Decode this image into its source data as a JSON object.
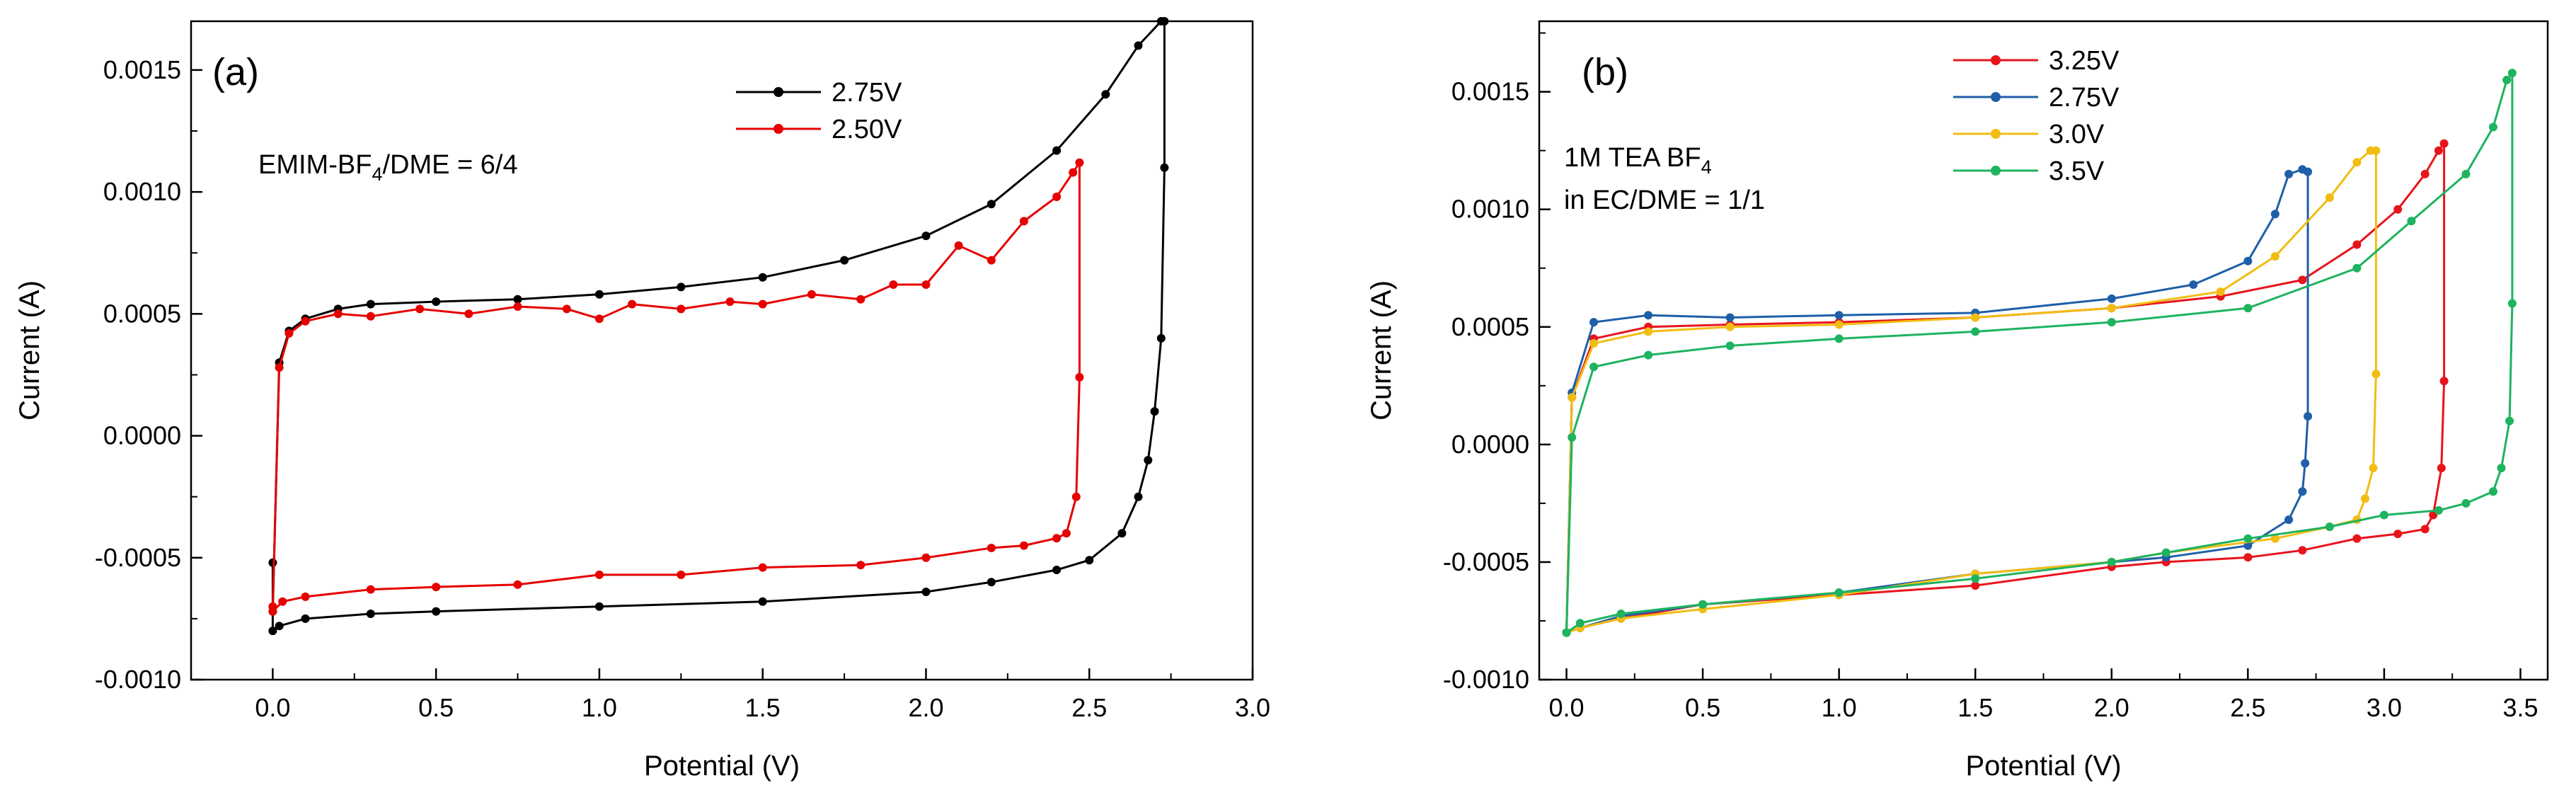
{
  "chart_data": [
    {
      "type": "line",
      "panel": "(a)",
      "xlabel": "Potential (V)",
      "ylabel": "Current (A)",
      "xlim": [
        -0.25,
        3.0
      ],
      "ylim": [
        -0.001,
        0.0017
      ],
      "xticks": [
        "0.0",
        "0.5",
        "1.0",
        "1.5",
        "2.0",
        "2.5",
        "3.0"
      ],
      "yticks": [
        "-0.0010",
        "-0.0005",
        "0.0000",
        "0.0005",
        "0.0010",
        "0.0015"
      ],
      "annotation": {
        "main": "EMIM-BF",
        "sub": "4",
        "rest": "/DME = 6/4"
      },
      "legend_position": "top-center",
      "series": [
        {
          "name": "2.75V",
          "color": "#000000",
          "x": [
            0.0,
            0.02,
            0.05,
            0.1,
            0.2,
            0.3,
            0.5,
            0.75,
            1.0,
            1.25,
            1.5,
            1.75,
            2.0,
            2.2,
            2.4,
            2.55,
            2.65,
            2.72,
            2.73,
            2.73,
            2.72,
            2.7,
            2.68,
            2.65,
            2.6,
            2.5,
            2.4,
            2.2,
            2.0,
            1.5,
            1.0,
            0.5,
            0.3,
            0.1,
            0.02,
            0.0,
            0.0
          ],
          "y": [
            -0.00072,
            0.0003,
            0.00043,
            0.00048,
            0.00052,
            0.00054,
            0.00055,
            0.00056,
            0.00058,
            0.00061,
            0.00065,
            0.00072,
            0.00082,
            0.00095,
            0.00117,
            0.0014,
            0.0016,
            0.0017,
            0.0017,
            0.0011,
            0.0004,
            0.0001,
            -0.0001,
            -0.00025,
            -0.0004,
            -0.00051,
            -0.00055,
            -0.0006,
            -0.00064,
            -0.00068,
            -0.0007,
            -0.00072,
            -0.00073,
            -0.00075,
            -0.00078,
            -0.0008,
            -0.00052
          ]
        },
        {
          "name": "2.50V",
          "color": "#e60000",
          "x": [
            0.0,
            0.02,
            0.05,
            0.1,
            0.2,
            0.3,
            0.45,
            0.6,
            0.75,
            0.9,
            1.0,
            1.1,
            1.25,
            1.4,
            1.5,
            1.65,
            1.8,
            1.9,
            2.0,
            2.1,
            2.2,
            2.3,
            2.4,
            2.45,
            2.47,
            2.47,
            2.46,
            2.43,
            2.4,
            2.3,
            2.2,
            2.0,
            1.8,
            1.5,
            1.25,
            1.0,
            0.75,
            0.5,
            0.3,
            0.1,
            0.03,
            0.0
          ],
          "y": [
            -0.0007,
            0.00028,
            0.00042,
            0.00047,
            0.0005,
            0.00049,
            0.00052,
            0.0005,
            0.00053,
            0.00052,
            0.00048,
            0.00054,
            0.00052,
            0.00055,
            0.00054,
            0.00058,
            0.00056,
            0.00062,
            0.00062,
            0.00078,
            0.00072,
            0.00088,
            0.00098,
            0.00108,
            0.00112,
            0.00024,
            -0.00025,
            -0.0004,
            -0.00042,
            -0.00045,
            -0.00046,
            -0.0005,
            -0.00053,
            -0.00054,
            -0.00057,
            -0.00057,
            -0.00061,
            -0.00062,
            -0.00063,
            -0.00066,
            -0.00068,
            -0.00072
          ]
        }
      ]
    },
    {
      "type": "line",
      "panel": "(b)",
      "xlabel": "Potential (V)",
      "ylabel": "Current (A)",
      "xlim": [
        -0.1,
        3.6
      ],
      "ylim": [
        -0.001,
        0.0018
      ],
      "xticks": [
        "0.0",
        "0.5",
        "1.0",
        "1.5",
        "2.0",
        "2.5",
        "3.0",
        "3.5"
      ],
      "yticks": [
        "-0.0010",
        "-0.0005",
        "0.0000",
        "0.0005",
        "0.0010",
        "0.0015"
      ],
      "annotation": {
        "line1_main": "1M TEA BF",
        "line1_sub": "4",
        "line2": "in EC/DME = 1/1"
      },
      "legend_position": "top-center",
      "series": [
        {
          "name": "3.25V",
          "color": "#e8141c",
          "x": [
            0.0,
            0.02,
            0.1,
            0.3,
            0.6,
            1.0,
            1.5,
            2.0,
            2.4,
            2.7,
            2.9,
            3.05,
            3.15,
            3.2,
            3.22,
            3.22,
            3.21,
            3.18,
            3.15,
            3.05,
            2.9,
            2.7,
            2.5,
            2.2,
            2.0,
            1.5,
            1.0,
            0.5,
            0.2,
            0.05,
            0.0
          ],
          "y": [
            -0.0008,
            0.0002,
            0.00045,
            0.0005,
            0.00051,
            0.00052,
            0.00054,
            0.00058,
            0.00063,
            0.0007,
            0.00085,
            0.001,
            0.00115,
            0.00125,
            0.00128,
            0.00027,
            -0.0001,
            -0.0003,
            -0.00036,
            -0.00038,
            -0.0004,
            -0.00045,
            -0.00048,
            -0.0005,
            -0.00052,
            -0.0006,
            -0.00064,
            -0.00068,
            -0.00074,
            -0.00078,
            -0.0008
          ]
        },
        {
          "name": "2.75V",
          "color": "#1f5fa8",
          "x": [
            0.0,
            0.02,
            0.1,
            0.3,
            0.6,
            1.0,
            1.5,
            2.0,
            2.3,
            2.5,
            2.6,
            2.65,
            2.7,
            2.72,
            2.72,
            2.71,
            2.7,
            2.65,
            2.5,
            2.2,
            2.0,
            1.5,
            1.0,
            0.5,
            0.2,
            0.05,
            0.0
          ],
          "y": [
            -0.0008,
            0.00022,
            0.00052,
            0.00055,
            0.00054,
            0.00055,
            0.00056,
            0.00062,
            0.00068,
            0.00078,
            0.00098,
            0.00115,
            0.00117,
            0.00116,
            0.00012,
            -8e-05,
            -0.0002,
            -0.00032,
            -0.00043,
            -0.00048,
            -0.0005,
            -0.00055,
            -0.00063,
            -0.00068,
            -0.00073,
            -0.00078,
            -0.0008
          ]
        },
        {
          "name": "3.0V",
          "color": "#f2bd12",
          "x": [
            0.0,
            0.02,
            0.1,
            0.3,
            0.6,
            1.0,
            1.5,
            2.0,
            2.4,
            2.6,
            2.8,
            2.9,
            2.95,
            2.97,
            2.97,
            2.96,
            2.93,
            2.9,
            2.8,
            2.6,
            2.2,
            2.0,
            1.5,
            1.0,
            0.5,
            0.2,
            0.05,
            0.0
          ],
          "y": [
            -0.0008,
            0.0002,
            0.00043,
            0.00048,
            0.0005,
            0.00051,
            0.00054,
            0.00058,
            0.00065,
            0.0008,
            0.00105,
            0.0012,
            0.00125,
            0.00125,
            0.0003,
            -0.0001,
            -0.00023,
            -0.00032,
            -0.00035,
            -0.0004,
            -0.00046,
            -0.0005,
            -0.00055,
            -0.00064,
            -0.0007,
            -0.00074,
            -0.00078,
            -0.0008
          ]
        },
        {
          "name": "3.5V",
          "color": "#1db35f",
          "x": [
            0.0,
            0.02,
            0.1,
            0.3,
            0.6,
            1.0,
            1.5,
            2.0,
            2.5,
            2.9,
            3.1,
            3.3,
            3.4,
            3.45,
            3.47,
            3.47,
            3.46,
            3.43,
            3.4,
            3.3,
            3.2,
            3.0,
            2.8,
            2.5,
            2.2,
            2.0,
            1.5,
            1.0,
            0.5,
            0.2,
            0.05,
            0.0
          ],
          "y": [
            -0.0008,
            3e-05,
            0.00033,
            0.00038,
            0.00042,
            0.00045,
            0.00048,
            0.00052,
            0.00058,
            0.00075,
            0.00095,
            0.00115,
            0.00135,
            0.00155,
            0.00158,
            0.0006,
            0.0001,
            -0.0001,
            -0.0002,
            -0.00025,
            -0.00028,
            -0.0003,
            -0.00035,
            -0.0004,
            -0.00046,
            -0.0005,
            -0.00057,
            -0.00063,
            -0.00068,
            -0.00072,
            -0.00076,
            -0.0008
          ]
        }
      ]
    }
  ]
}
